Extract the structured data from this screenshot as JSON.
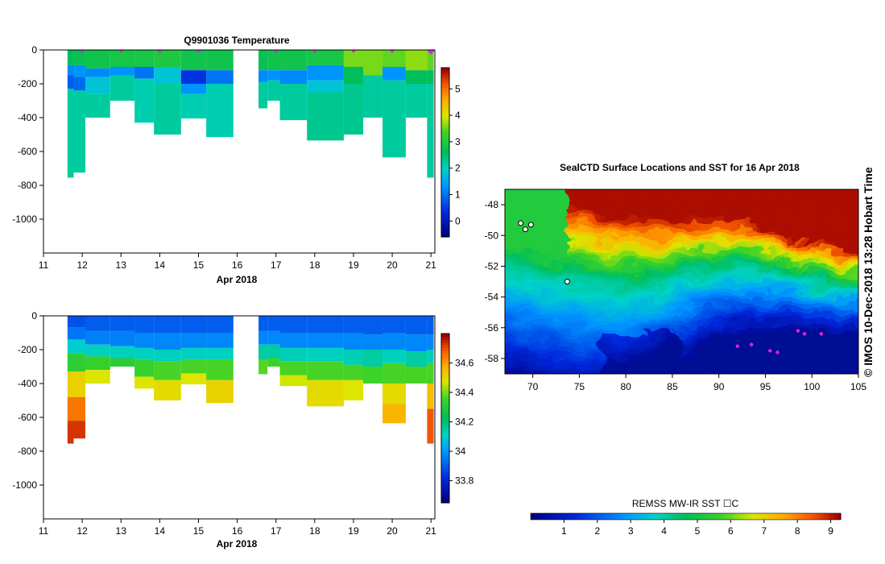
{
  "credit": "© IMOS 10-Dec-2018 13:28 Hobart Time",
  "chart_data": [
    {
      "type": "heatmap",
      "title": "Q9901036  Temperature",
      "xlabel": "Apr 2018",
      "ylabel": "",
      "xlim": [
        11,
        21.1
      ],
      "ylim": [
        -1200,
        0
      ],
      "xticks": [
        "11",
        "12",
        "13",
        "14",
        "15",
        "16",
        "17",
        "18",
        "19",
        "20",
        "21"
      ],
      "yticks": [
        "0",
        "-200",
        "-400",
        "-600",
        "-800",
        "-1000"
      ],
      "colorbar_ticks": [
        "0",
        "1",
        "2",
        "3",
        "4",
        "5"
      ],
      "colorbar_range": [
        -0.6,
        5.8
      ],
      "profile_markers_x": [
        12,
        13,
        14,
        15,
        17,
        18,
        19,
        20,
        21
      ],
      "profiles": [
        {
          "x0": 11.62,
          "x1": 11.78,
          "max_depth": 755,
          "layers": [
            [
              0,
              2.6
            ],
            [
              90,
              1.2
            ],
            [
              150,
              0.8
            ],
            [
              230,
              2.2
            ]
          ]
        },
        {
          "x0": 11.78,
          "x1": 12.08,
          "max_depth": 725,
          "layers": [
            [
              0,
              2.7
            ],
            [
              90,
              1.3
            ],
            [
              160,
              0.9
            ],
            [
              240,
              2.2
            ]
          ]
        },
        {
          "x0": 12.08,
          "x1": 12.72,
          "max_depth": 400,
          "layers": [
            [
              0,
              2.8
            ],
            [
              110,
              1.2
            ],
            [
              160,
              1.8
            ],
            [
              260,
              2.2
            ]
          ]
        },
        {
          "x0": 12.72,
          "x1": 13.35,
          "max_depth": 300,
          "layers": [
            [
              0,
              2.9
            ],
            [
              100,
              1.3
            ],
            [
              150,
              2.2
            ]
          ]
        },
        {
          "x0": 13.35,
          "x1": 13.85,
          "max_depth": 430,
          "layers": [
            [
              0,
              2.9
            ],
            [
              100,
              1.0
            ],
            [
              170,
              2.1
            ]
          ]
        },
        {
          "x0": 13.85,
          "x1": 14.55,
          "max_depth": 500,
          "layers": [
            [
              0,
              3.0
            ],
            [
              100,
              1.8
            ],
            [
              200,
              2.2
            ]
          ]
        },
        {
          "x0": 14.55,
          "x1": 15.2,
          "max_depth": 405,
          "layers": [
            [
              0,
              2.8
            ],
            [
              120,
              0.4
            ],
            [
              200,
              1.3
            ],
            [
              260,
              2.1
            ]
          ]
        },
        {
          "x0": 15.2,
          "x1": 15.9,
          "max_depth": 515,
          "layers": [
            [
              0,
              2.8
            ],
            [
              120,
              1.0
            ],
            [
              200,
              2.1
            ]
          ]
        },
        {
          "x0": 16.55,
          "x1": 16.78,
          "max_depth": 345,
          "layers": [
            [
              0,
              2.7
            ],
            [
              120,
              1.2
            ],
            [
              190,
              2.2
            ]
          ]
        },
        {
          "x0": 16.78,
          "x1": 17.1,
          "max_depth": 300,
          "layers": [
            [
              0,
              2.8
            ],
            [
              120,
              1.3
            ],
            [
              180,
              2.2
            ]
          ]
        },
        {
          "x0": 17.1,
          "x1": 17.8,
          "max_depth": 415,
          "layers": [
            [
              0,
              2.8
            ],
            [
              120,
              1.2
            ],
            [
              200,
              2.2
            ]
          ]
        },
        {
          "x0": 17.8,
          "x1": 18.75,
          "max_depth": 535,
          "layers": [
            [
              0,
              2.9
            ],
            [
              90,
              1.3
            ],
            [
              180,
              1.8
            ],
            [
              250,
              2.3
            ]
          ]
        },
        {
          "x0": 18.75,
          "x1": 19.25,
          "max_depth": 500,
          "layers": [
            [
              0,
              3.6
            ],
            [
              100,
              2.6
            ],
            [
              200,
              2.3
            ]
          ]
        },
        {
          "x0": 19.25,
          "x1": 19.75,
          "max_depth": 400,
          "layers": [
            [
              0,
              3.6
            ],
            [
              150,
              2.2
            ]
          ]
        },
        {
          "x0": 19.75,
          "x1": 20.35,
          "max_depth": 635,
          "layers": [
            [
              0,
              3.5
            ],
            [
              100,
              1.3
            ],
            [
              180,
              2.2
            ]
          ]
        },
        {
          "x0": 20.35,
          "x1": 20.9,
          "max_depth": 400,
          "layers": [
            [
              0,
              3.7
            ],
            [
              120,
              2.6
            ],
            [
              200,
              2.2
            ]
          ]
        },
        {
          "x0": 20.9,
          "x1": 21.07,
          "max_depth": 755,
          "layers": [
            [
              0,
              3.5
            ],
            [
              120,
              2.6
            ],
            [
              200,
              2.2
            ]
          ]
        }
      ]
    },
    {
      "type": "heatmap",
      "title": "",
      "xlabel": "Apr 2018",
      "ylabel": "",
      "xlim": [
        11,
        21.1
      ],
      "ylim": [
        -1200,
        0
      ],
      "xticks": [
        "11",
        "12",
        "13",
        "14",
        "15",
        "16",
        "17",
        "18",
        "19",
        "20",
        "21"
      ],
      "yticks": [
        "0",
        "-200",
        "-400",
        "-600",
        "-800",
        "-1000"
      ],
      "colorbar_ticks": [
        "33.8",
        "34",
        "34.2",
        "34.4",
        "34.6"
      ],
      "colorbar_range": [
        33.65,
        34.8
      ],
      "profiles": [
        {
          "x0": 11.62,
          "x1": 11.78,
          "max_depth": 755,
          "layers": [
            [
              0,
              33.88
            ],
            [
              70,
              33.94
            ],
            [
              140,
              34.1
            ],
            [
              220,
              34.33
            ],
            [
              330,
              34.52
            ],
            [
              480,
              34.66
            ],
            [
              620,
              34.74
            ]
          ]
        },
        {
          "x0": 11.78,
          "x1": 12.08,
          "max_depth": 725,
          "layers": [
            [
              0,
              33.88
            ],
            [
              70,
              33.94
            ],
            [
              140,
              34.1
            ],
            [
              220,
              34.33
            ],
            [
              330,
              34.52
            ],
            [
              480,
              34.66
            ],
            [
              620,
              34.74
            ]
          ]
        },
        {
          "x0": 12.08,
          "x1": 12.72,
          "max_depth": 400,
          "layers": [
            [
              0,
              33.9
            ],
            [
              90,
              33.96
            ],
            [
              170,
              34.12
            ],
            [
              240,
              34.35
            ],
            [
              320,
              34.48
            ]
          ]
        },
        {
          "x0": 12.72,
          "x1": 13.35,
          "max_depth": 300,
          "layers": [
            [
              0,
              33.9
            ],
            [
              90,
              33.96
            ],
            [
              180,
              34.12
            ],
            [
              250,
              34.32
            ]
          ]
        },
        {
          "x0": 13.35,
          "x1": 13.85,
          "max_depth": 430,
          "layers": [
            [
              0,
              33.9
            ],
            [
              100,
              33.97
            ],
            [
              190,
              34.12
            ],
            [
              260,
              34.35
            ],
            [
              360,
              34.48
            ]
          ]
        },
        {
          "x0": 13.85,
          "x1": 14.55,
          "max_depth": 500,
          "layers": [
            [
              0,
              33.9
            ],
            [
              100,
              33.97
            ],
            [
              200,
              34.12
            ],
            [
              270,
              34.37
            ],
            [
              380,
              34.5
            ]
          ]
        },
        {
          "x0": 14.55,
          "x1": 15.2,
          "max_depth": 405,
          "layers": [
            [
              0,
              33.9
            ],
            [
              100,
              33.97
            ],
            [
              190,
              34.12
            ],
            [
              260,
              34.37
            ],
            [
              340,
              34.48
            ]
          ]
        },
        {
          "x0": 15.2,
          "x1": 15.9,
          "max_depth": 515,
          "layers": [
            [
              0,
              33.9
            ],
            [
              100,
              33.97
            ],
            [
              190,
              34.12
            ],
            [
              260,
              34.37
            ],
            [
              380,
              34.52
            ]
          ]
        },
        {
          "x0": 16.55,
          "x1": 16.78,
          "max_depth": 345,
          "layers": [
            [
              0,
              33.9
            ],
            [
              90,
              33.97
            ],
            [
              170,
              34.15
            ],
            [
              260,
              34.38
            ]
          ]
        },
        {
          "x0": 16.78,
          "x1": 17.1,
          "max_depth": 300,
          "layers": [
            [
              0,
              33.9
            ],
            [
              90,
              33.97
            ],
            [
              170,
              34.15
            ],
            [
              250,
              34.36
            ]
          ]
        },
        {
          "x0": 17.1,
          "x1": 17.8,
          "max_depth": 415,
          "layers": [
            [
              0,
              33.9
            ],
            [
              100,
              33.97
            ],
            [
              190,
              34.13
            ],
            [
              270,
              34.37
            ],
            [
              350,
              34.47
            ]
          ]
        },
        {
          "x0": 17.8,
          "x1": 18.75,
          "max_depth": 535,
          "layers": [
            [
              0,
              33.9
            ],
            [
              100,
              33.97
            ],
            [
              190,
              34.12
            ],
            [
              270,
              34.37
            ],
            [
              380,
              34.5
            ]
          ]
        },
        {
          "x0": 18.75,
          "x1": 19.25,
          "max_depth": 500,
          "layers": [
            [
              0,
              33.9
            ],
            [
              100,
              33.97
            ],
            [
              200,
              34.13
            ],
            [
              290,
              34.37
            ],
            [
              380,
              34.48
            ]
          ]
        },
        {
          "x0": 19.25,
          "x1": 19.75,
          "max_depth": 400,
          "layers": [
            [
              0,
              33.9
            ],
            [
              110,
              33.97
            ],
            [
              200,
              34.15
            ],
            [
              300,
              34.36
            ]
          ]
        },
        {
          "x0": 19.75,
          "x1": 20.35,
          "max_depth": 635,
          "layers": [
            [
              0,
              33.9
            ],
            [
              100,
              33.97
            ],
            [
              200,
              34.12
            ],
            [
              280,
              34.37
            ],
            [
              400,
              34.5
            ],
            [
              520,
              34.57
            ]
          ]
        },
        {
          "x0": 20.35,
          "x1": 20.9,
          "max_depth": 400,
          "layers": [
            [
              0,
              33.9
            ],
            [
              110,
              33.97
            ],
            [
              210,
              34.15
            ],
            [
              300,
              34.37
            ]
          ]
        },
        {
          "x0": 20.9,
          "x1": 21.07,
          "max_depth": 755,
          "layers": [
            [
              0,
              33.9
            ],
            [
              110,
              33.97
            ],
            [
              200,
              34.13
            ],
            [
              280,
              34.37
            ],
            [
              400,
              34.55
            ],
            [
              550,
              34.7
            ]
          ]
        }
      ]
    },
    {
      "type": "heatmap",
      "title": "SealCTD Surface Locations and SST for 16 Apr 2018",
      "xlabel": "",
      "ylabel": "",
      "xlim": [
        67,
        105
      ],
      "ylim": [
        -59,
        -47
      ],
      "xticks": [
        "70",
        "75",
        "80",
        "85",
        "90",
        "95",
        "100",
        "105"
      ],
      "yticks": [
        "-48",
        "-50",
        "-52",
        "-54",
        "-56",
        "-58"
      ],
      "colorbar_label": "REMSS MW-IR SST ☐C",
      "colorbar_ticks": [
        "1",
        "2",
        "3",
        "4",
        "5",
        "6",
        "7",
        "8",
        "9"
      ],
      "colorbar_range": [
        0,
        9.3
      ],
      "sst_front_lat": [
        [
          67,
          -51.2
        ],
        [
          70,
          -51.6
        ],
        [
          73,
          -52.0
        ],
        [
          76,
          -52.3
        ],
        [
          79,
          -52.6
        ],
        [
          82,
          -52.5
        ],
        [
          85,
          -52.2
        ],
        [
          88,
          -51.8
        ],
        [
          91,
          -51.6
        ],
        [
          94,
          -51.7
        ],
        [
          97,
          -52.1
        ],
        [
          100,
          -52.6
        ],
        [
          103,
          -52.9
        ],
        [
          105,
          -53.0
        ]
      ],
      "seal_locations": [
        [
          68.7,
          -49.2
        ],
        [
          69.2,
          -49.6
        ],
        [
          69.8,
          -49.3
        ],
        [
          73.7,
          -53.0
        ],
        [
          92.0,
          -57.2
        ],
        [
          93.5,
          -57.1
        ],
        [
          95.5,
          -57.5
        ],
        [
          96.3,
          -57.6
        ],
        [
          98.5,
          -56.2
        ],
        [
          99.2,
          -56.4
        ],
        [
          101.0,
          -56.4
        ]
      ]
    }
  ]
}
